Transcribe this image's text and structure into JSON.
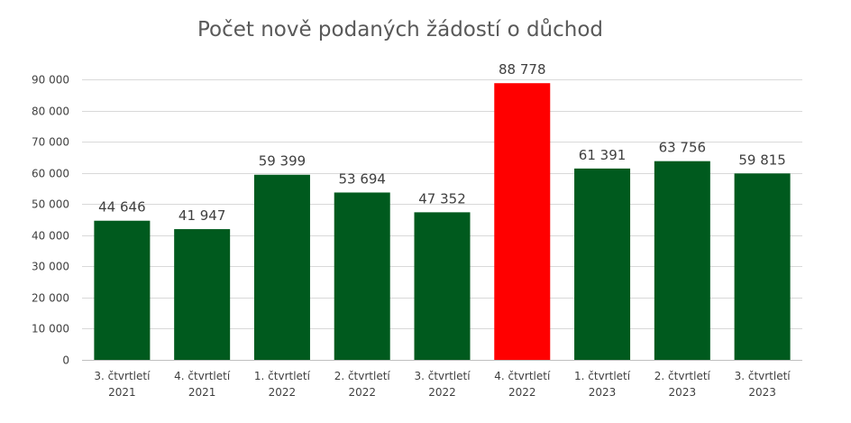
{
  "chart_data": {
    "type": "bar",
    "title": "Počet nově podaných žádostí o důchod",
    "xlabel": "",
    "ylabel": "",
    "ylim": [
      0,
      90000
    ],
    "yticks": [
      0,
      10000,
      20000,
      30000,
      40000,
      50000,
      60000,
      70000,
      80000,
      90000
    ],
    "ytick_labels": [
      "0",
      "10 000",
      "20 000",
      "30 000",
      "40 000",
      "50 000",
      "60 000",
      "70 000",
      "80 000",
      "90 000"
    ],
    "grid": true,
    "legend": "none",
    "categories": [
      [
        "3. čtvrtletí",
        "2021"
      ],
      [
        "4. čtvrtletí",
        "2021"
      ],
      [
        "1. čtvrtletí",
        "2022"
      ],
      [
        "2. čtvrtletí",
        "2022"
      ],
      [
        "3. čtvrtletí",
        "2022"
      ],
      [
        "4. čtvrtletí",
        "2022"
      ],
      [
        "1. čtvrtletí",
        "2023"
      ],
      [
        "2. čtvrtletí",
        "2023"
      ],
      [
        "3. čtvrtletí",
        "2023"
      ]
    ],
    "values": [
      44646,
      41947,
      59399,
      53694,
      47352,
      88778,
      61391,
      63756,
      59815
    ],
    "data_labels": [
      "44 646",
      "41 947",
      "59 399",
      "53 694",
      "47 352",
      "88 778",
      "61 391",
      "63 756",
      "59 815"
    ],
    "colors": [
      "#005a1e",
      "#005a1e",
      "#005a1e",
      "#005a1e",
      "#005a1e",
      "#ff0000",
      "#005a1e",
      "#005a1e",
      "#005a1e"
    ]
  }
}
